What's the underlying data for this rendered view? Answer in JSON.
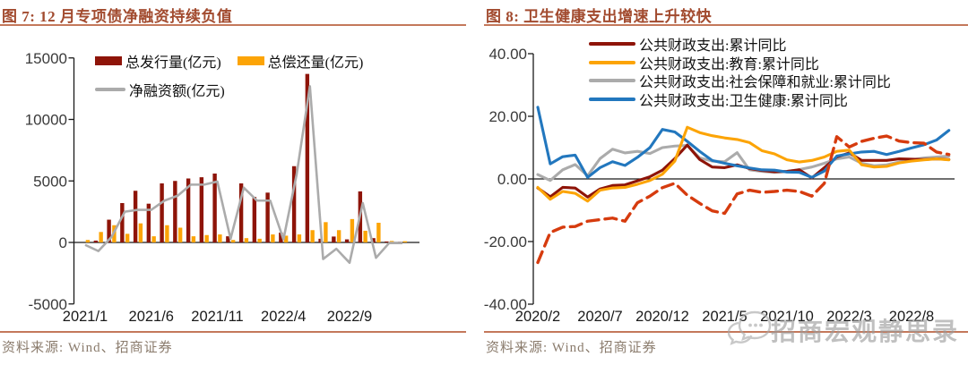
{
  "watermark": {
    "text": "招商宏观静思录",
    "icon": "chat-bubbles-icon",
    "color": "#9a9a9a"
  },
  "colors": {
    "title": "#A24B2F",
    "rule": "#C4785B",
    "axis_text": "#3a3a3a",
    "source_text": "#8A7B6C",
    "dark_red": "#8E1408",
    "orange": "#FCA406",
    "gray": "#ABABAB",
    "blue": "#2277BE",
    "dashed_red": "#D63B0E"
  },
  "figure7": {
    "title": "图 7: 12 月专项债净融资持续负值",
    "source": "资料来源: Wind、招商证券",
    "legend": [
      {
        "label": "总发行量(亿元)",
        "color": "#8E1408",
        "type": "bar"
      },
      {
        "label": "总偿还量(亿元)",
        "color": "#FCA406",
        "type": "bar"
      },
      {
        "label": "净融资额(亿元)",
        "color": "#ABABAB",
        "type": "line"
      }
    ],
    "chart_data": {
      "type": "bar",
      "title": "12 月专项债净融资持续负值",
      "categories": [
        "2021/1",
        "2021/2",
        "2021/3",
        "2021/4",
        "2021/5",
        "2021/6",
        "2021/7",
        "2021/8",
        "2021/9",
        "2021/10",
        "2021/11",
        "2021/12",
        "2022/1",
        "2022/2",
        "2022/3",
        "2022/4",
        "2022/5",
        "2022/6",
        "2022/7",
        "2022/8",
        "2022/9",
        "2022/10",
        "2022/11",
        "2022/12",
        "2023/1"
      ],
      "series": [
        {
          "name": "总发行量(亿元)",
          "type": "bar",
          "color": "#8E1408",
          "values": [
            0,
            150,
            1850,
            3200,
            4200,
            3150,
            4800,
            5000,
            5200,
            5300,
            5600,
            500,
            4800,
            3700,
            4050,
            800,
            6200,
            13700,
            300,
            480,
            250,
            4150,
            350,
            80,
            50
          ]
        },
        {
          "name": "总偿还量(亿元)",
          "type": "bar",
          "color": "#FCA406",
          "values": [
            200,
            850,
            1400,
            700,
            1550,
            500,
            1400,
            1200,
            500,
            600,
            650,
            200,
            350,
            300,
            650,
            550,
            650,
            1000,
            1650,
            1000,
            1900,
            950,
            1600,
            120,
            100
          ]
        },
        {
          "name": "净融资额(亿元)",
          "type": "line",
          "color": "#ABABAB",
          "values": [
            -200,
            -700,
            450,
            2500,
            2650,
            2650,
            3400,
            3800,
            4700,
            4700,
            4950,
            300,
            4450,
            3400,
            3400,
            250,
            5550,
            12700,
            -1350,
            -520,
            -1650,
            3200,
            -1250,
            -40,
            -50
          ]
        }
      ],
      "ylim": [
        -5000,
        15000
      ],
      "yticks": [
        15000,
        10000,
        5000,
        0,
        -5000
      ],
      "ytick_labels": [
        "15000",
        "10000",
        "5000",
        "0",
        "-5000"
      ],
      "xtick_labels": [
        "2021/1",
        "2021/6",
        "2021/11",
        "2022/4",
        "2022/9"
      ],
      "xtick_positions": [
        0,
        5,
        10,
        15,
        20
      ],
      "grid": false,
      "legend_position": "top-inside"
    }
  },
  "figure8": {
    "title": "图 8: 卫生健康支出增速上升较快",
    "source": "资料来源: Wind、招商证券",
    "legend": [
      {
        "label": "公共财政支出:累计同比",
        "color": "#8E1408",
        "type": "line"
      },
      {
        "label": "公共财政支出:教育:累计同比",
        "color": "#FCA406",
        "type": "line"
      },
      {
        "label": "公共财政支出:社会保障和就业:累计同比",
        "color": "#ABABAB",
        "type": "line"
      },
      {
        "label": "公共财政支出:卫生健康:累计同比",
        "color": "#2277BE",
        "type": "line"
      }
    ],
    "chart_data": {
      "type": "line",
      "title": "卫生健康支出增速上升较快",
      "x": [
        "2020/2",
        "2020/3",
        "2020/4",
        "2020/5",
        "2020/6",
        "2020/7",
        "2020/8",
        "2020/9",
        "2020/10",
        "2020/11",
        "2020/12",
        "2021/1",
        "2021/2",
        "2021/3",
        "2021/4",
        "2021/5",
        "2021/6",
        "2021/7",
        "2021/8",
        "2021/9",
        "2021/10",
        "2021/11",
        "2021/12",
        "2022/1",
        "2022/2",
        "2022/3",
        "2022/4",
        "2022/5",
        "2022/6",
        "2022/7",
        "2022/8",
        "2022/9",
        "2022/10",
        "2022/11"
      ],
      "series": [
        {
          "name": "公共财政支出:社会保障和就业:累计同比",
          "color": "#ABABAB",
          "dash": false,
          "values": [
            1.4,
            -0.5,
            2.9,
            4.6,
            1.0,
            6.5,
            9.5,
            8.3,
            8.8,
            8.1,
            10.0,
            10.5,
            10.7,
            6.7,
            5.7,
            5.5,
            8.4,
            2.9,
            2.4,
            2.1,
            2.4,
            3.0,
            3.8,
            5.0,
            6.4,
            7.0,
            5.0,
            4.2,
            4.5,
            5.4,
            6.1,
            6.7,
            7.0,
            7.3
          ]
        },
        {
          "name": "公共财政支出:累计同比",
          "color": "#8E1408",
          "dash": false,
          "values": [
            -2.9,
            -5.7,
            -2.7,
            -2.9,
            -5.8,
            -3.2,
            -2.1,
            -1.9,
            -0.6,
            0.7,
            2.8,
            6.5,
            10.8,
            6.2,
            3.8,
            3.6,
            4.5,
            3.3,
            2.7,
            2.3,
            2.4,
            2.9,
            0.3,
            3.6,
            7.0,
            8.3,
            5.9,
            5.9,
            5.9,
            6.4,
            6.3,
            6.2,
            6.4,
            6.2
          ]
        },
        {
          "name": "公共财政支出:卫生健康:累计同比",
          "color": "#2277BE",
          "dash": false,
          "values": [
            22.9,
            4.8,
            7.1,
            7.6,
            0.5,
            3.6,
            5.5,
            4.3,
            6.9,
            10.0,
            15.8,
            15.0,
            12.0,
            8.8,
            5.9,
            5.0,
            4.2,
            3.5,
            2.9,
            2.8,
            2.2,
            2.1,
            0.5,
            2.5,
            7.3,
            8.0,
            8.6,
            8.8,
            7.8,
            8.8,
            9.9,
            10.9,
            12.4,
            15.5
          ]
        },
        {
          "name": "公共财政支出:教育:累计同比",
          "color": "#FCA406",
          "dash": false,
          "values": [
            -2.7,
            -6.5,
            -4.0,
            -4.6,
            -7.1,
            -3.6,
            -2.9,
            -2.7,
            -1.7,
            -0.5,
            1.5,
            5.7,
            16.5,
            14.8,
            13.8,
            13.1,
            12.6,
            11.6,
            9.0,
            8.0,
            6.1,
            5.4,
            5.9,
            7.0,
            8.8,
            9.2,
            4.5,
            3.8,
            4.0,
            5.1,
            5.7,
            6.1,
            6.4,
            6.1
          ]
        },
        {
          "name": "红色虚线(图例未标注)",
          "color": "#D63B0E",
          "dash": true,
          "values": [
            -26.7,
            -17.1,
            -15.4,
            -15.2,
            -13.5,
            -13.0,
            -12.5,
            -13.5,
            -7.6,
            -5.5,
            -2.8,
            -1.4,
            -5.2,
            -7.8,
            -10.2,
            -11.0,
            -4.8,
            -3.6,
            -4.3,
            -4.0,
            -3.6,
            -4.0,
            -5.5,
            -1.4,
            13.5,
            10.2,
            12.0,
            13.0,
            13.7,
            12.1,
            11.6,
            11.4,
            8.6,
            7.8
          ]
        }
      ],
      "ylim": [
        -40,
        40
      ],
      "yticks": [
        40,
        20,
        0,
        -20,
        -40
      ],
      "ytick_labels": [
        "40.00",
        "20.00",
        "0.00",
        "-20.00",
        "-40.00"
      ],
      "xtick_labels": [
        "2020/2",
        "2020/7",
        "2020/12",
        "2021/5",
        "2021/10",
        "2022/3",
        "2022/8"
      ],
      "xtick_positions": [
        0,
        5,
        10,
        15,
        20,
        25,
        30
      ],
      "grid": false,
      "legend_position": "top-inside"
    }
  }
}
